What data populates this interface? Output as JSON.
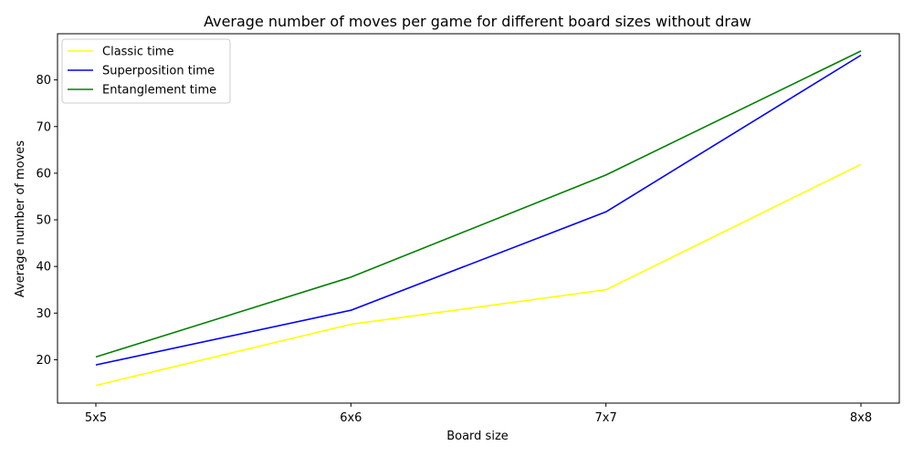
{
  "chart_data": {
    "type": "line",
    "title": "Average number of moves per game for different board sizes without draw",
    "xlabel": "Board size",
    "ylabel": "Average number of moves",
    "categories": [
      "5x5",
      "6x6",
      "7x7",
      "8x8"
    ],
    "ylim": [
      10.7,
      89.9
    ],
    "yticks": [
      20,
      30,
      40,
      50,
      60,
      70,
      80
    ],
    "grid": false,
    "legend_position": "top-left",
    "series": [
      {
        "name": "Classic time",
        "color": "#ffff00",
        "values": [
          14.5,
          27.6,
          35.0,
          61.9
        ]
      },
      {
        "name": "Superposition time",
        "color": "#0000ff",
        "values": [
          18.9,
          30.6,
          51.7,
          85.3
        ]
      },
      {
        "name": "Entanglement time",
        "color": "#008000",
        "values": [
          20.6,
          37.7,
          59.6,
          86.2
        ]
      }
    ]
  }
}
